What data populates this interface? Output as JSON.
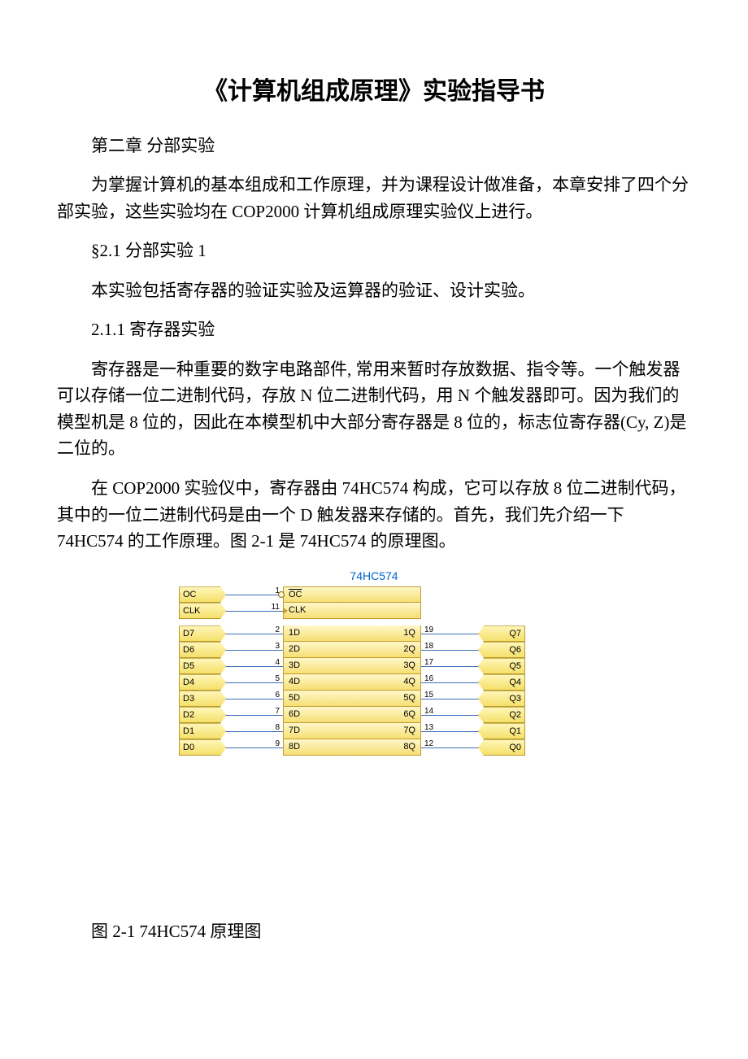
{
  "doc": {
    "title": "《计算机组成原理》实验指导书",
    "p1": "第二章 分部实验",
    "p2": "为掌握计算机的基本组成和工作原理，并为课程设计做准备，本章安排了四个分部实验，这些实验均在 COP2000 计算机组成原理实验仪上进行。",
    "p3": "§2.1 分部实验 1",
    "p4": "本实验包括寄存器的验证实验及运算器的验证、设计实验。",
    "p5": "2.1.1 寄存器实验",
    "p6": "寄存器是一种重要的数字电路部件, 常用来暂时存放数据、指令等。一个触发器可以存储一位二进制代码，存放 N 位二进制代码，用 N 个触发器即可。因为我们的模型机是 8 位的，因此在本模型机中大部分寄存器是 8 位的，标志位寄存器(Cy, Z)是二位的。",
    "p7": "在 COP2000 实验仪中，寄存器由 74HC574 构成，它可以存放 8 位二进制代码，其中的一位二进制代码是由一个 D 触发器来存储的。首先，我们先介绍一下 74HC574 的工作原理。图 2-1 是 74HC574 的原理图。",
    "caption": "图 2-1 74HC574 原理图"
  },
  "chip": {
    "name": "74HC574",
    "colors": {
      "body_fill_top": "#fff7c9",
      "body_fill_bottom": "#f6df75",
      "body_border": "#c49b2e",
      "tag_fill_top": "#fff6b8",
      "tag_fill_bottom": "#f5e06a",
      "tag_border": "#b89b2a",
      "wire": "#3a6fb7",
      "title": "#0066cc"
    },
    "rows": [
      {
        "left_tag": "OC",
        "left_pin": "1",
        "body_left": "OC",
        "body_left_overline": true,
        "bubble": true,
        "body_right": "",
        "right_pin": "",
        "right_tag": ""
      },
      {
        "left_tag": "CLK",
        "left_pin": "11",
        "body_left": "CLK",
        "arrow": true,
        "body_right": "",
        "right_pin": "",
        "right_tag": ""
      },
      {
        "spacer": true
      },
      {
        "left_tag": "D7",
        "left_pin": "2",
        "body_left": "1D",
        "body_right": "1Q",
        "right_pin": "19",
        "right_tag": "Q7"
      },
      {
        "left_tag": "D6",
        "left_pin": "3",
        "body_left": "2D",
        "body_right": "2Q",
        "right_pin": "18",
        "right_tag": "Q6"
      },
      {
        "left_tag": "D5",
        "left_pin": "4",
        "body_left": "3D",
        "body_right": "3Q",
        "right_pin": "17",
        "right_tag": "Q5"
      },
      {
        "left_tag": "D4",
        "left_pin": "5",
        "body_left": "4D",
        "body_right": "4Q",
        "right_pin": "16",
        "right_tag": "Q4"
      },
      {
        "left_tag": "D3",
        "left_pin": "6",
        "body_left": "5D",
        "body_right": "5Q",
        "right_pin": "15",
        "right_tag": "Q3"
      },
      {
        "left_tag": "D2",
        "left_pin": "7",
        "body_left": "6D",
        "body_right": "6Q",
        "right_pin": "14",
        "right_tag": "Q2"
      },
      {
        "left_tag": "D1",
        "left_pin": "8",
        "body_left": "7D",
        "body_right": "7Q",
        "right_pin": "13",
        "right_tag": "Q1"
      },
      {
        "left_tag": "D0",
        "left_pin": "9",
        "body_left": "8D",
        "body_right": "8Q",
        "right_pin": "12",
        "right_tag": "Q0"
      }
    ]
  }
}
